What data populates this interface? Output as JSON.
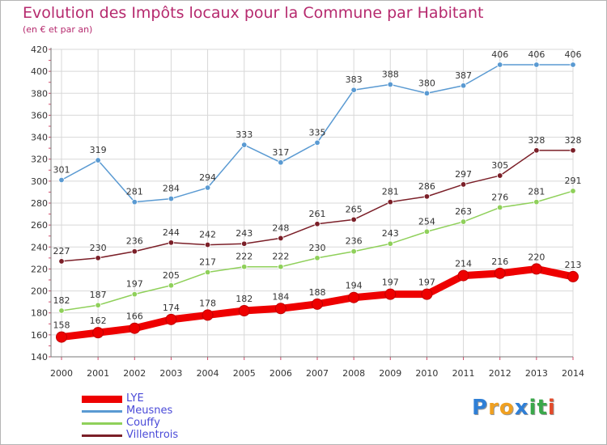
{
  "chart_data": {
    "type": "line",
    "title": "Evolution des Impôts locaux pour la Commune par Habitant",
    "subtitle": "(en € et par an)",
    "categories": [
      "2000",
      "2001",
      "2002",
      "2003",
      "2004",
      "2005",
      "2006",
      "2007",
      "2008",
      "2009",
      "2010",
      "2011",
      "2012",
      "2013",
      "2014"
    ],
    "ylim": [
      140,
      420
    ],
    "yticks": [
      140,
      160,
      180,
      200,
      220,
      240,
      260,
      280,
      300,
      320,
      340,
      360,
      380,
      400,
      420
    ],
    "grid": true,
    "legend_position": "bottom-left",
    "series": [
      {
        "name": "Meusnes",
        "color": "#5a9ad2",
        "values": [
          301,
          319,
          281,
          284,
          294,
          333,
          317,
          335,
          383,
          388,
          380,
          387,
          406,
          406,
          406
        ]
      },
      {
        "name": "Villentrois",
        "color": "#7b1f28",
        "values": [
          227,
          230,
          236,
          244,
          242,
          243,
          248,
          261,
          265,
          281,
          286,
          297,
          305,
          328,
          328
        ]
      },
      {
        "name": "Couffy",
        "color": "#8fd05a",
        "values": [
          182,
          187,
          197,
          205,
          217,
          222,
          222,
          230,
          236,
          243,
          254,
          263,
          276,
          281,
          291
        ]
      },
      {
        "name": "LYE",
        "color": "#ee0000",
        "values": [
          158,
          162,
          166,
          174,
          178,
          182,
          184,
          188,
          194,
          197,
          197,
          214,
          216,
          220,
          213
        ]
      }
    ]
  },
  "legend": {
    "items": [
      {
        "label": "LYE",
        "color": "#ee0000"
      },
      {
        "label": "Meusnes",
        "color": "#5a9ad2"
      },
      {
        "label": "Couffy",
        "color": "#8fd05a"
      },
      {
        "label": "Villentrois",
        "color": "#7b1f28"
      }
    ]
  },
  "logo": {
    "letters": [
      "P",
      "r",
      "o",
      "x",
      "i",
      "t",
      "i"
    ],
    "colors": [
      "#2f7fd6",
      "#f0a020",
      "#f0a020",
      "#2f7fd6",
      "#3aa84a",
      "#3aa84a",
      "#e34a2a"
    ]
  }
}
